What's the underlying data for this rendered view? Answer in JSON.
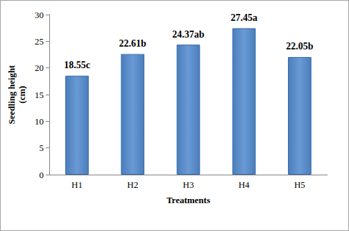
{
  "chart_data": {
    "type": "bar",
    "categories": [
      "H1",
      "H2",
      "H3",
      "H4",
      "H5"
    ],
    "values": [
      18.55,
      22.61,
      24.37,
      27.45,
      22.05
    ],
    "value_labels": [
      "18.55c",
      "22.61b",
      "24.37ab",
      "27.45a",
      "22.05b"
    ],
    "data_labels": true,
    "color": "#4a7ebb",
    "x_label": "Treatments",
    "y_label": "Seedling height\n(cm)",
    "ylim": [
      0,
      30
    ],
    "yticks": [
      0,
      5,
      10,
      15,
      20,
      25,
      30
    ],
    "grid": false
  }
}
